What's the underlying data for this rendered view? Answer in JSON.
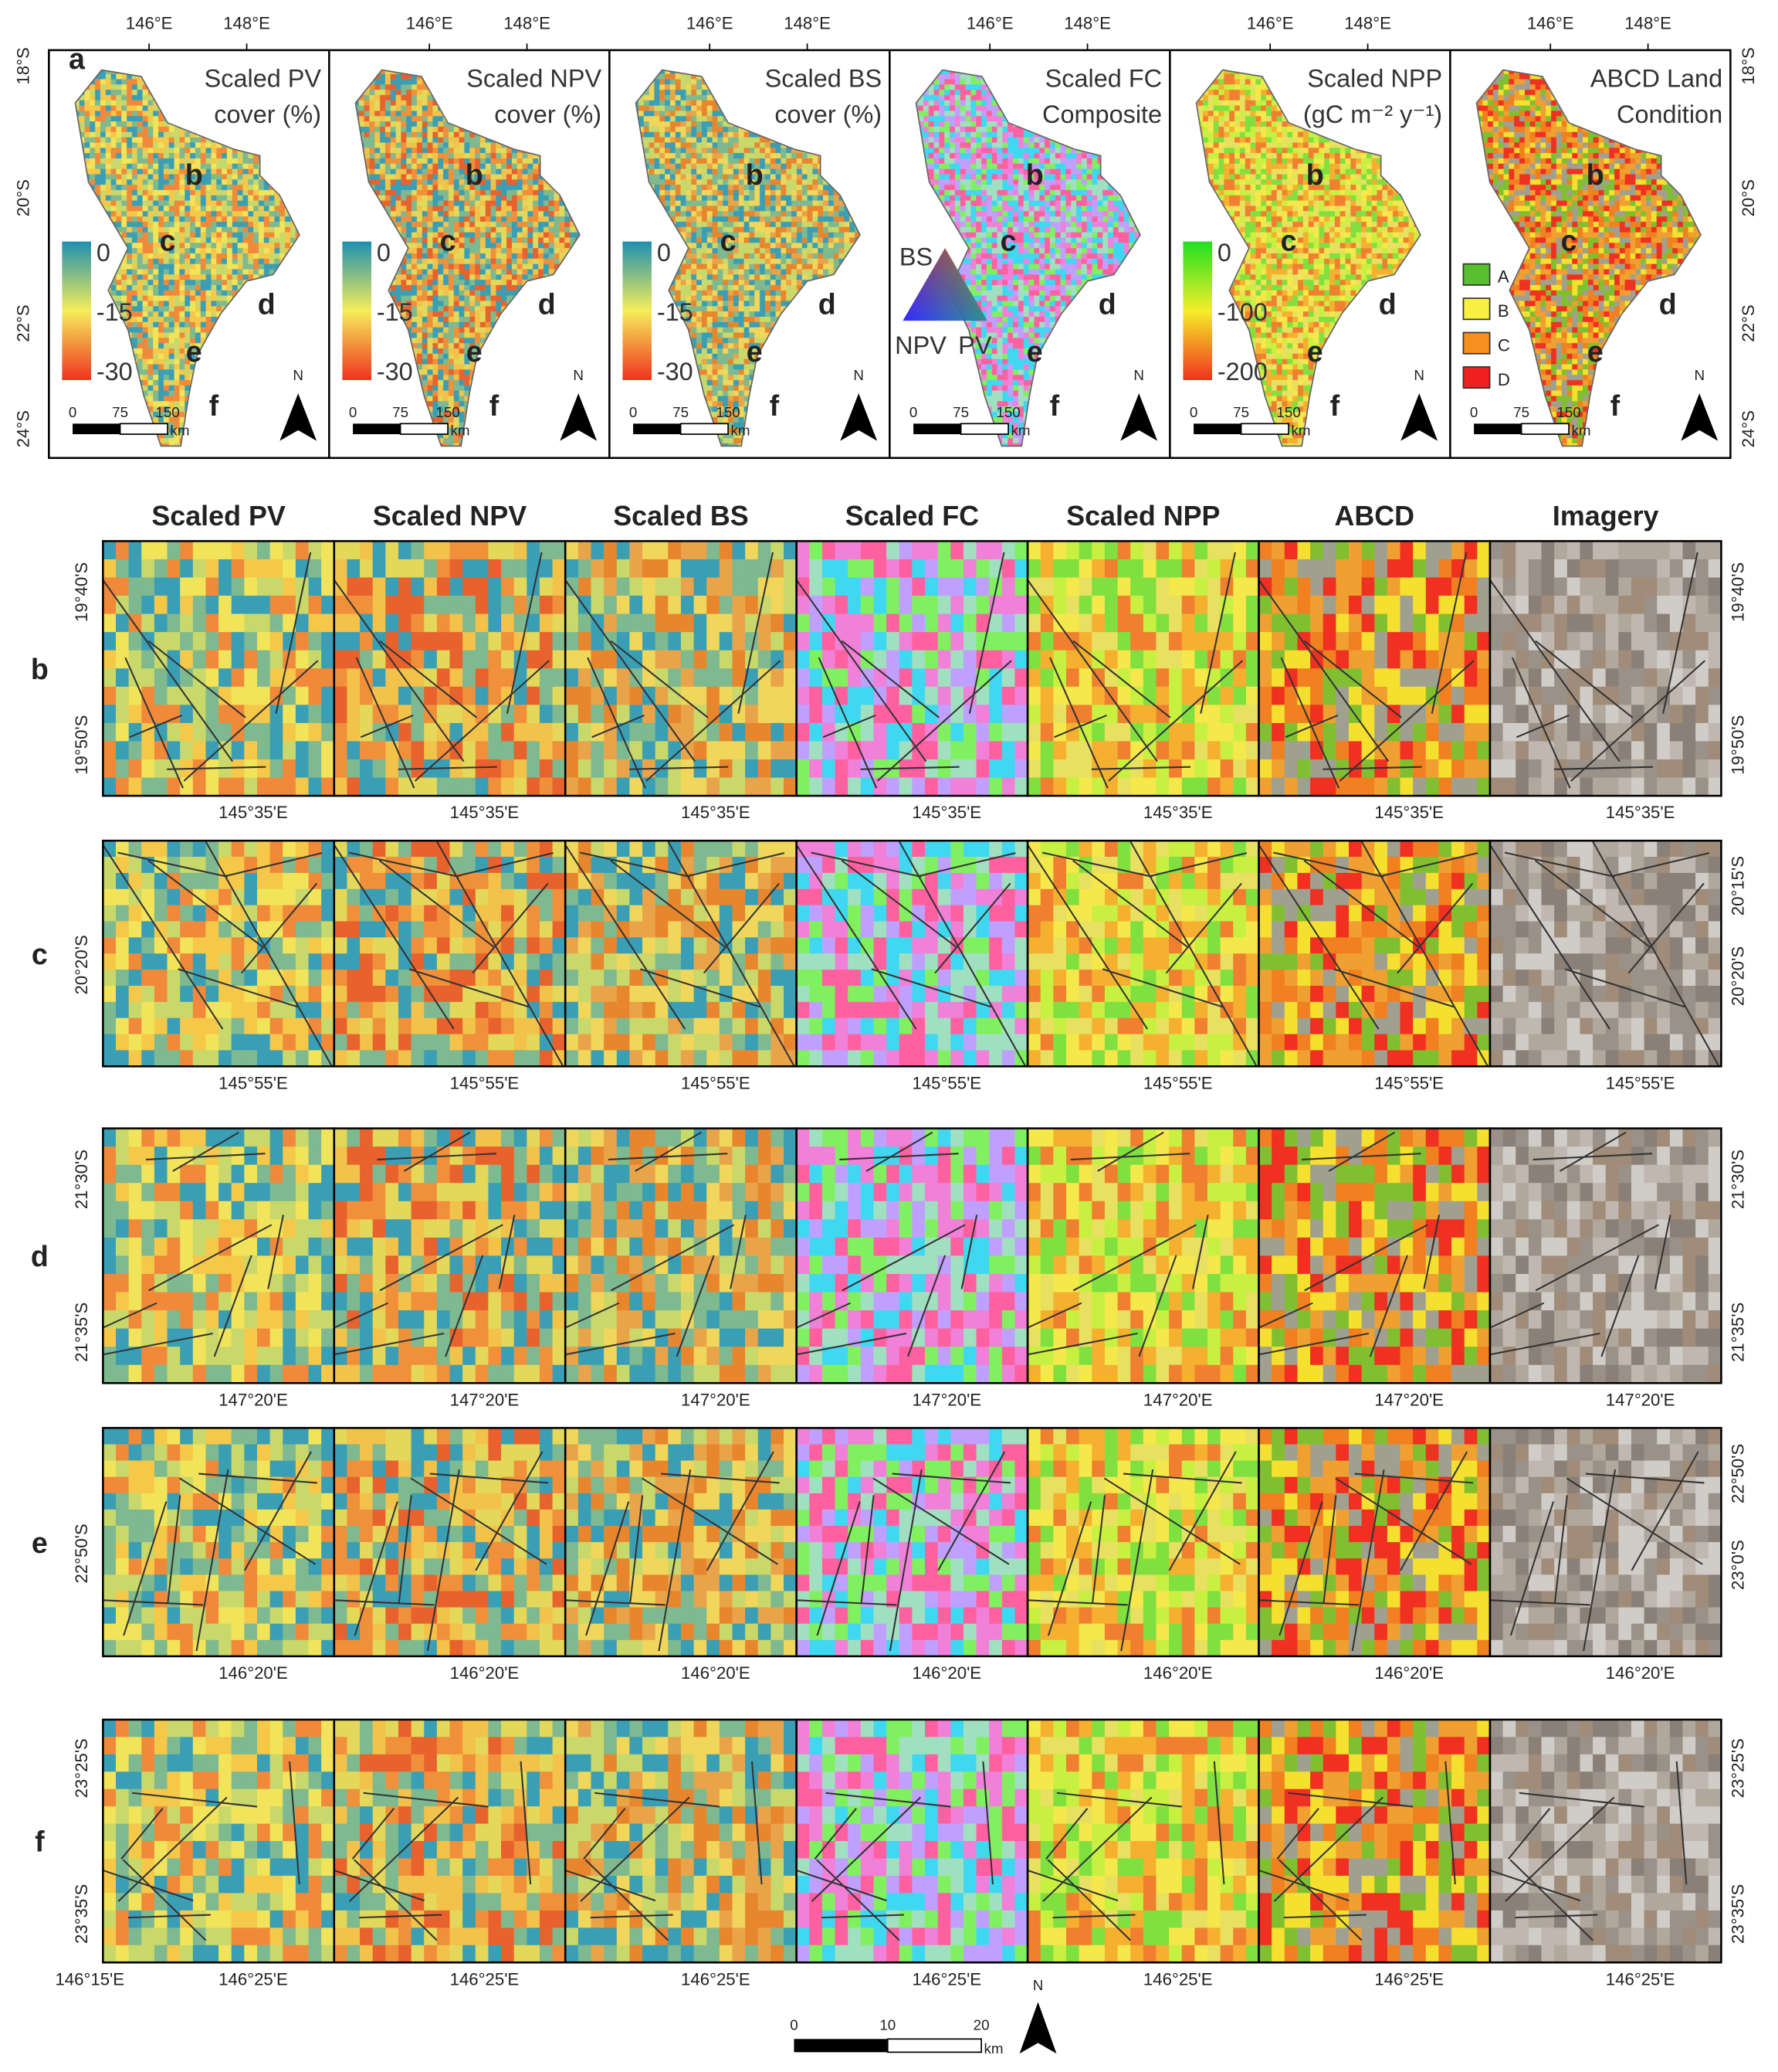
{
  "panel_a": {
    "label": "a",
    "lon_ticks": [
      "146°E",
      "148°E"
    ],
    "lat_ticks": [
      "18°S",
      "20°S",
      "22°S",
      "24°S"
    ],
    "panels": [
      {
        "title": [
          "Scaled PV",
          "cover (%)"
        ],
        "legend": [
          "0",
          "-15",
          "-30"
        ]
      },
      {
        "title": [
          "Scaled NPV",
          "cover (%)"
        ],
        "legend": [
          "0",
          "-15",
          "-30"
        ]
      },
      {
        "title": [
          "Scaled BS",
          "cover (%)"
        ],
        "legend": [
          "0",
          "-15",
          "-30"
        ]
      },
      {
        "title": [
          "Scaled FC",
          "Composite"
        ],
        "legend": [
          "BS",
          "NPV",
          "PV"
        ]
      },
      {
        "title": [
          "Scaled NPP",
          "(gC m⁻² y⁻¹)"
        ],
        "legend": [
          "0",
          "-100",
          "-200"
        ]
      },
      {
        "title": [
          "ABCD Land",
          "Condition"
        ],
        "legend": [
          "A",
          "B",
          "C",
          "D"
        ]
      }
    ],
    "site_labels": [
      "b",
      "c",
      "d",
      "e",
      "f"
    ],
    "scale_labels": [
      "0",
      "75",
      "150"
    ],
    "scale_unit": "km",
    "north": "N"
  },
  "column_headers": [
    "Scaled PV",
    "Scaled NPV",
    "Scaled BS",
    "Scaled FC",
    "Scaled NPP",
    "ABCD",
    "Imagery"
  ],
  "rows": [
    {
      "label": "b",
      "lat_left": [
        "19°40'S",
        "19°50'S"
      ],
      "lat_right": [
        "19°40'S",
        "19°50'S"
      ],
      "lon": "145°35'E"
    },
    {
      "label": "c",
      "lat_left": [
        "20°20'S"
      ],
      "lat_right": [
        "20°15'S",
        "20°20'S"
      ],
      "lon": "145°55'E"
    },
    {
      "label": "d",
      "lat_left": [
        "21°30'S",
        "21°35'S"
      ],
      "lat_right": [
        "21°30'S",
        "21°35'S"
      ],
      "lon": "147°20'E"
    },
    {
      "label": "e",
      "lat_left": [
        "22°50'S"
      ],
      "lat_right": [
        "22°50'S",
        "23°0'S"
      ],
      "lon": "146°20'E"
    },
    {
      "label": "f",
      "lat_left": [
        "23°25'S",
        "23°35'S"
      ],
      "lat_right": [
        "23°25'S",
        "23°35'S"
      ],
      "lon": "146°25'E",
      "lon_first": "146°15'E"
    }
  ],
  "bottom_scale": {
    "labels": [
      "0",
      "10",
      "20"
    ],
    "unit": "km",
    "north": "N"
  }
}
